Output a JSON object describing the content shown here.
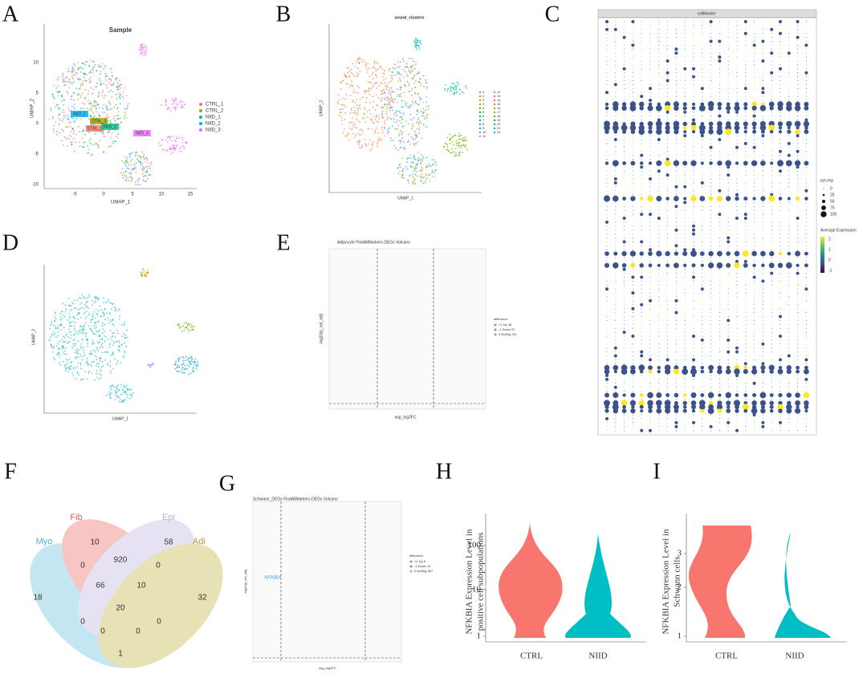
{
  "panels": {
    "A": {
      "letter": "A",
      "title": "Sample",
      "x_label": "UMAP_1",
      "y_label": "UMAP_2",
      "x_ticks": [
        "-5",
        "0",
        "5",
        "10",
        "15"
      ],
      "y_ticks": [
        "-10",
        "-5",
        "0",
        "5",
        "10"
      ],
      "legend": [
        {
          "name": "CTRL_1",
          "color": "#f8766d"
        },
        {
          "name": "CTRL_2",
          "color": "#a3a500"
        },
        {
          "name": "NIID_1",
          "color": "#00bf7d"
        },
        {
          "name": "NIID_2",
          "color": "#00b0f6"
        },
        {
          "name": "NIID_3",
          "color": "#e76bf3"
        }
      ],
      "labels": [
        "NIID_2",
        "CTRL_2",
        "CTRL_1",
        "NIID_1",
        "NIID_3"
      ]
    },
    "B": {
      "letter": "B",
      "title": "seurat_clusters",
      "x_label": "UMAP_1",
      "y_label": "UMAP_2",
      "legend": [
        "0",
        "1",
        "2",
        "3",
        "4",
        "5",
        "6",
        "7",
        "8",
        "9",
        "10",
        "11",
        "12",
        "13",
        "14",
        "15",
        "16",
        "17",
        "18",
        "19",
        "20",
        "21",
        "22"
      ]
    },
    "C": {
      "letter": "C",
      "header": "cellMarker",
      "size_title": "pct.exp",
      "size_ticks": [
        "0",
        "25",
        "50",
        "75",
        "100"
      ],
      "color_title": "Average Expression",
      "color_ticks": [
        "2",
        "1",
        "0",
        "-1"
      ]
    },
    "D": {
      "letter": "D",
      "x_label": "UMAP_1",
      "y_label": "UMAP_2"
    },
    "E": {
      "letter": "E",
      "title": "Adipocyte FindAllMarkers-DEGs Volcano",
      "x_label": "avg_log2FC",
      "y_label": "-log10(p_val_adj)",
      "legend_title": "difference",
      "legend": [
        "+1 Up 48",
        "-1 Down 21",
        "0 NotSig 911"
      ]
    },
    "F": {
      "letter": "F",
      "sets": [
        "Myo",
        "Fib",
        "Epi",
        "Adi"
      ],
      "counts": [
        "10",
        "58",
        "18",
        "920",
        "32",
        "0",
        "0",
        "66",
        "10",
        "20",
        "0",
        "0",
        "0",
        "0",
        "1"
      ]
    },
    "G": {
      "letter": "G",
      "title": "Schwann_DEGs FindAllMarkers-DEGs Volcano",
      "x_label": "avg_log2FC",
      "y_label": "-log10(p_val_adj)",
      "gene": "NFKBIA",
      "legend_title": "difference",
      "legend": [
        "+1 Up 6",
        "-1 Down 12",
        "0 NotSig 507"
      ]
    },
    "H": {
      "letter": "H",
      "y_label": [
        "NFKBIA Expression Level in",
        "positive cell subpopulations"
      ],
      "y_ticks": [
        "100",
        "10",
        "1"
      ],
      "groups": [
        "CTRL",
        "NIID"
      ]
    },
    "I": {
      "letter": "I",
      "y_label": [
        "NFKBIA Expression Level in",
        "Schwann cells"
      ],
      "y_ticks": [
        "3",
        "2",
        "1"
      ],
      "groups": [
        "CTRL",
        "NIID"
      ]
    }
  }
}
